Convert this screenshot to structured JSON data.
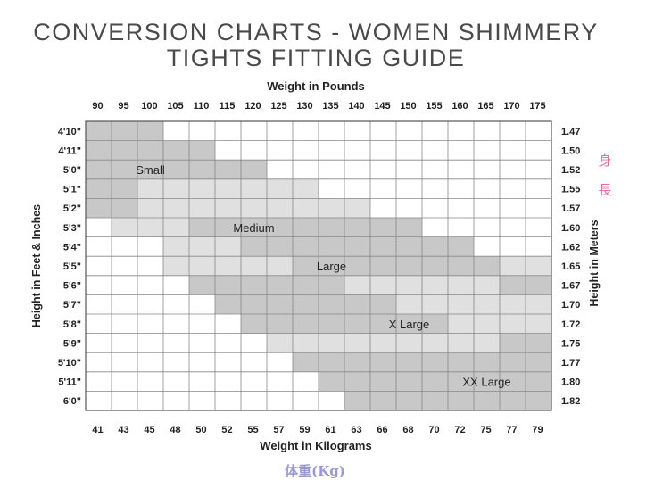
{
  "title_line1": "CONVERSION CHARTS - WOMEN SHIMMERY",
  "title_line2": "TIGHTS FITTING GUIDE",
  "chart_data": {
    "type": "heatmap",
    "top_axis_label": "Weight in Pounds",
    "bottom_axis_label": "Weight in Kilograms",
    "left_axis_label": "Height in Feet & Inches",
    "right_axis_label": "Height in Meters",
    "pounds": [
      "90",
      "95",
      "100",
      "105",
      "110",
      "115",
      "120",
      "125",
      "130",
      "135",
      "140",
      "145",
      "150",
      "155",
      "160",
      "165",
      "170",
      "175"
    ],
    "kilograms": [
      "41",
      "43",
      "45",
      "48",
      "50",
      "52",
      "55",
      "57",
      "59",
      "61",
      "63",
      "66",
      "68",
      "70",
      "72",
      "75",
      "77",
      "79"
    ],
    "heights_ft": [
      "4'10\"",
      "4'11\"",
      "5'0\"",
      "5'1\"",
      "5'2\"",
      "5'3\"",
      "5'4\"",
      "5'5\"",
      "5'6\"",
      "5'7\"",
      "5'8\"",
      "5'9\"",
      "5'10\"",
      "5'11\"",
      "6'0\""
    ],
    "heights_m": [
      "1.47",
      "1.50",
      "1.52",
      "1.55",
      "1.57",
      "1.60",
      "1.62",
      "1.65",
      "1.67",
      "1.70",
      "1.72",
      "1.75",
      "1.77",
      "1.80",
      "1.82"
    ],
    "sizes": [
      "Small",
      "Medium",
      "Large",
      "X Large",
      "XX Large"
    ],
    "size_colors": [
      "#c8c8c8",
      "#e0e0e0",
      "#c8c8c8",
      "#e0e0e0",
      "#c8c8c8"
    ],
    "size_ranges_by_height": [
      [
        [
          0,
          2
        ]
      ],
      [
        [
          0,
          4
        ]
      ],
      [
        [
          0,
          6
        ]
      ],
      [
        [
          0,
          1
        ],
        [
          2,
          8
        ]
      ],
      [
        [
          0,
          1
        ],
        [
          2,
          10
        ]
      ],
      [
        [
          1,
          4
        ],
        [
          4,
          12
        ]
      ],
      [
        [
          3,
          6
        ],
        [
          6,
          14
        ]
      ],
      [
        [
          3,
          8
        ],
        [
          8,
          16
        ],
        [
          16,
          17
        ]
      ],
      [
        [
          4,
          10
        ],
        [
          10,
          16
        ],
        [
          16,
          17
        ]
      ],
      [
        [
          5,
          12
        ],
        [
          12,
          17
        ]
      ],
      [
        [
          6,
          14
        ],
        [
          14,
          17
        ]
      ],
      [
        [
          7,
          16
        ],
        [
          16,
          17
        ]
      ],
      [
        [
          8,
          17
        ]
      ],
      [
        [
          9,
          17
        ]
      ],
      [
        [
          10,
          17
        ]
      ]
    ],
    "size_of_range": [
      [
        0
      ],
      [
        0
      ],
      [
        0
      ],
      [
        0,
        1
      ],
      [
        0,
        1
      ],
      [
        1,
        2
      ],
      [
        1,
        2
      ],
      [
        1,
        2,
        3
      ],
      [
        2,
        3,
        4
      ],
      [
        2,
        3
      ],
      [
        2,
        3
      ],
      [
        3,
        4
      ],
      [
        4
      ],
      [
        4
      ],
      [
        4
      ]
    ],
    "size_label_positions": [
      {
        "size": "Small",
        "height_row": 2,
        "pound_col": 2
      },
      {
        "size": "Medium",
        "height_row": 5,
        "pound_col": 6
      },
      {
        "size": "Large",
        "height_row": 7,
        "pound_col": 9
      },
      {
        "size": "X Large",
        "height_row": 10,
        "pound_col": 12
      },
      {
        "size": "XX Large",
        "height_row": 13,
        "pound_col": 15
      }
    ],
    "annotation_height_cjk": [
      "身",
      "長"
    ],
    "annotation_weight_cjk": "体重(Kg)",
    "annotation_color": "#e06fa0",
    "annotation_weight_color": "#9a9ad0"
  }
}
